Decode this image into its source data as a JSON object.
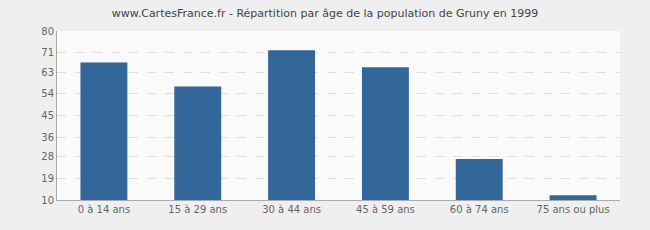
{
  "chart_data": {
    "type": "bar",
    "title": "www.CartesFrance.fr - Répartition par âge de la population de Gruny en 1999",
    "categories": [
      "0 à 14 ans",
      "15 à 29 ans",
      "30 à 44 ans",
      "45 à 59 ans",
      "60 à 74 ans",
      "75 ans ou plus"
    ],
    "values": [
      67,
      57,
      72,
      65,
      27,
      12
    ],
    "color": "#336699",
    "ylim": [
      10,
      80
    ],
    "yticks": [
      10,
      19,
      28,
      36,
      45,
      54,
      63,
      71,
      80
    ],
    "grid": true
  }
}
